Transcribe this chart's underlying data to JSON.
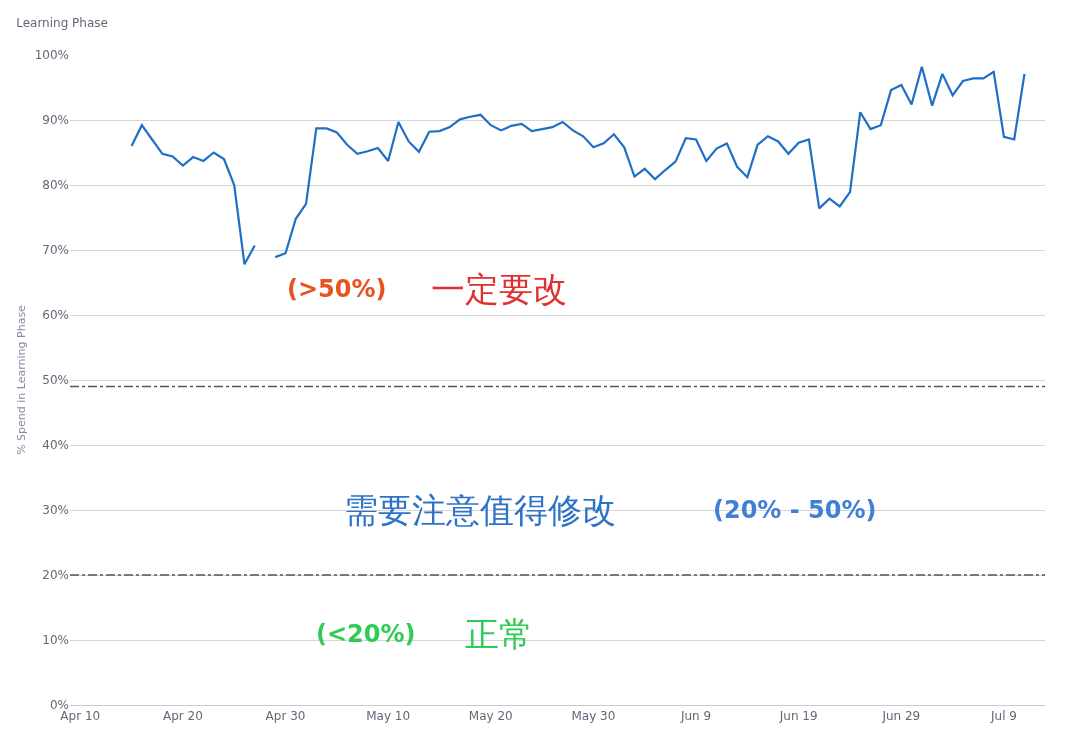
{
  "chart_data": {
    "type": "line",
    "title": "Learning Phase",
    "ylabel": "% Spend in Learning Phase",
    "x": [
      "--04-15",
      "--04-16",
      "--04-17",
      "--04-18",
      "--04-19",
      "--04-20",
      "--04-21",
      "--04-22",
      "--04-23",
      "--04-24",
      "--04-25",
      "--04-26",
      "--04-27",
      "--04-28",
      "--04-29",
      "--04-30",
      "--05-01",
      "--05-02",
      "--05-03",
      "--05-04",
      "--05-05",
      "--05-06",
      "--05-07",
      "--05-08",
      "--05-09",
      "--05-10",
      "--05-11",
      "--05-12",
      "--05-13",
      "--05-14",
      "--05-15",
      "--05-16",
      "--05-17",
      "--05-18",
      "--05-19",
      "--05-20",
      "--05-21",
      "--05-22",
      "--05-23",
      "--05-24",
      "--05-25",
      "--05-26",
      "--05-27",
      "--05-28",
      "--05-29",
      "--05-30",
      "--05-31",
      "--06-01",
      "--06-02",
      "--06-03",
      "--06-04",
      "--06-05",
      "--06-06",
      "--06-07",
      "--06-08",
      "--06-09",
      "--06-10",
      "--06-11",
      "--06-12",
      "--06-13",
      "--06-14",
      "--06-15",
      "--06-16",
      "--06-17",
      "--06-18",
      "--06-19",
      "--06-20",
      "--06-21",
      "--06-22",
      "--06-23",
      "--06-24",
      "--06-25",
      "--06-26",
      "--06-27",
      "--06-28",
      "--06-29",
      "--06-30",
      "--07-01",
      "--07-02",
      "--07-03",
      "--07-04",
      "--07-05",
      "--07-06",
      "--07-07",
      "--07-08",
      "--07-09",
      "--07-10",
      "--07-11"
    ],
    "series": [
      {
        "color": "#1f6fc5",
        "values": [
          86.0,
          89.2,
          87.0,
          84.8,
          84.4,
          83.0,
          84.3,
          83.7,
          85.0,
          84.0,
          80.0,
          67.8,
          70.7,
          null,
          68.9,
          69.5,
          74.8,
          77.1,
          88.7,
          88.7,
          88.1,
          86.2,
          84.8,
          85.2,
          85.7,
          83.7,
          89.7,
          86.7,
          85.1,
          88.2,
          88.3,
          88.9,
          90.1,
          90.5,
          90.8,
          89.2,
          88.4,
          89.1,
          89.4,
          88.3,
          88.6,
          88.9,
          89.7,
          88.4,
          87.5,
          85.8,
          86.4,
          87.8,
          85.8,
          81.3,
          82.5,
          80.9,
          82.3,
          83.6,
          87.2,
          87.0,
          83.7,
          85.6,
          86.4,
          82.8,
          81.2,
          86.2,
          87.5,
          86.7,
          84.8,
          86.5,
          87.0,
          76.4,
          77.9,
          76.7,
          78.9,
          91.2,
          88.6,
          89.2,
          94.6,
          95.4,
          92.4,
          98.2,
          92.2,
          97.1,
          93.8,
          96.0,
          96.4,
          96.4,
          97.4,
          87.4,
          87.0,
          97.1
        ]
      }
    ],
    "xlim": [
      "--04-09",
      "--07-13"
    ],
    "xticks": [
      {
        "value": "--04-10",
        "label": "Apr 10"
      },
      {
        "value": "--04-20",
        "label": "Apr 20"
      },
      {
        "value": "--04-30",
        "label": "Apr 30"
      },
      {
        "value": "--05-10",
        "label": "May 10"
      },
      {
        "value": "--05-20",
        "label": "May 20"
      },
      {
        "value": "--05-30",
        "label": "May 30"
      },
      {
        "value": "--06-09",
        "label": "Jun 9"
      },
      {
        "value": "--06-19",
        "label": "Jun 19"
      },
      {
        "value": "--06-29",
        "label": "Jun 29"
      },
      {
        "value": "--07-09",
        "label": "Jul 9"
      }
    ],
    "ylim": [
      0,
      100
    ],
    "yticks": [
      {
        "value": 0,
        "label": "0%"
      },
      {
        "value": 10,
        "label": "10%"
      },
      {
        "value": 20,
        "label": "20%"
      },
      {
        "value": 30,
        "label": "30%"
      },
      {
        "value": 40,
        "label": "40%"
      },
      {
        "value": 50,
        "label": "50%"
      },
      {
        "value": 60,
        "label": "60%"
      },
      {
        "value": 70,
        "label": "70%"
      },
      {
        "value": 80,
        "label": "80%"
      },
      {
        "value": 90,
        "label": "90%"
      },
      {
        "value": 100,
        "label": "100%"
      }
    ],
    "ref_lines": [
      {
        "axis": "y",
        "value": 49,
        "color": "#555555",
        "line_style": "dashdot"
      },
      {
        "axis": "y",
        "value": 20,
        "color": "#555555",
        "line_style": "dashdot"
      }
    ],
    "annotations": [
      "(>50%)",
      "一定要改",
      "需要注意值得修改",
      "(20% - 50%)",
      "(<20%)",
      "正常"
    ],
    "grid": "y",
    "marker": "none",
    "line_style": "solid"
  }
}
